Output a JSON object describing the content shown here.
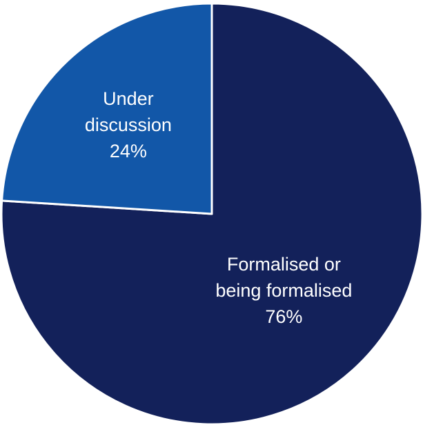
{
  "chart_data": {
    "type": "pie",
    "title": "",
    "start_angle_deg": 0,
    "direction": "clockwise",
    "slices": [
      {
        "label_lines": [
          "Formalised or",
          "being formalised"
        ],
        "percent_label": "76%",
        "value": 76,
        "color": "#13215a"
      },
      {
        "label_lines": [
          "Under",
          "discussion"
        ],
        "percent_label": "24%",
        "value": 24,
        "color": "#1257a8"
      }
    ],
    "legend": "none",
    "slice_border_color": "#ffffff"
  }
}
